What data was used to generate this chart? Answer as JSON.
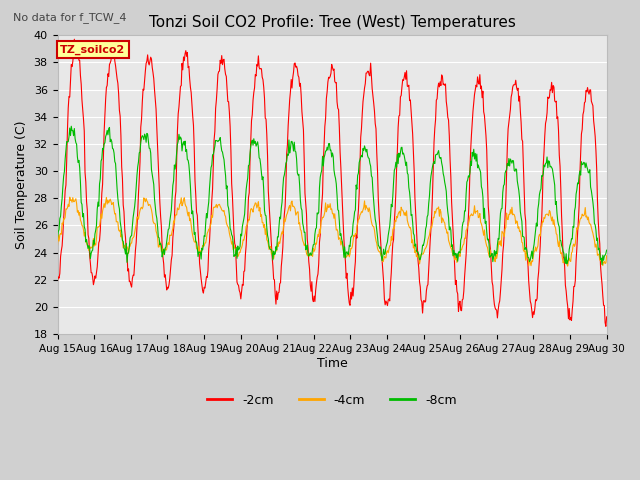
{
  "title": "Tonzi Soil CO2 Profile: Tree (West) Temperatures",
  "note": "No data for f_TCW_4",
  "legend_box_label": "TZ_soilco2",
  "ylabel": "Soil Temperature (C)",
  "xlabel": "Time",
  "ylim": [
    18,
    40
  ],
  "xlim": [
    0,
    15
  ],
  "xtick_labels": [
    "Aug 15",
    "Aug 16",
    "Aug 17",
    "Aug 18",
    "Aug 19",
    "Aug 20",
    "Aug 21",
    "Aug 22",
    "Aug 23",
    "Aug 24",
    "Aug 25",
    "Aug 26",
    "Aug 27",
    "Aug 28",
    "Aug 29",
    "Aug 30"
  ],
  "color_2cm": "#ff0000",
  "color_4cm": "#ffa500",
  "color_8cm": "#00bb00",
  "label_2cm": "-2cm",
  "label_4cm": "-4cm",
  "label_8cm": "-8cm",
  "fig_bg": "#d0d0d0",
  "plot_bg": "#e8e8e8"
}
